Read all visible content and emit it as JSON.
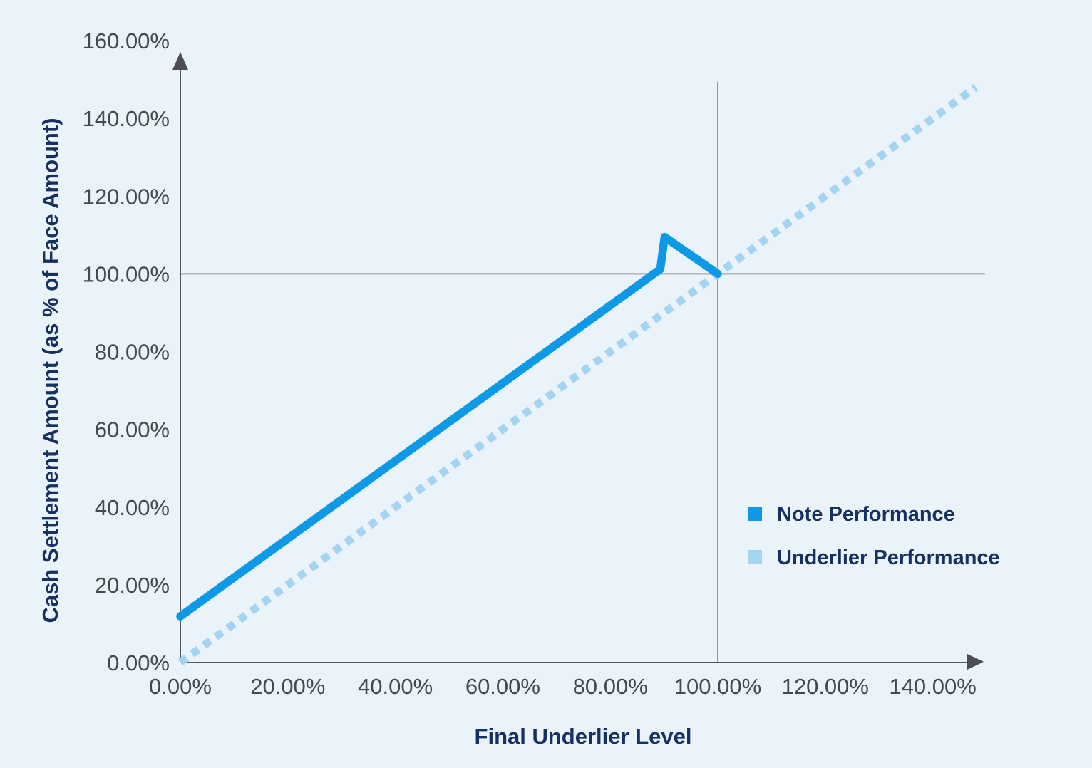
{
  "page": {
    "background_color": "#EAF3FA"
  },
  "chart_data": {
    "type": "line",
    "title": "",
    "xlabel": "Final Underlier Level",
    "ylabel": "Cash Settlement Amount (as % of Face Amount)",
    "xlim": [
      0,
      149
    ],
    "ylim": [
      0,
      160
    ],
    "grid": false,
    "x_ticks": [
      {
        "label": "0.00%",
        "value": 0
      },
      {
        "label": "20.00%",
        "value": 20
      },
      {
        "label": "40.00%",
        "value": 40
      },
      {
        "label": "60.00%",
        "value": 60
      },
      {
        "label": "80.00%",
        "value": 80
      },
      {
        "label": "100.00%",
        "value": 100
      },
      {
        "label": "120.00%",
        "value": 120
      },
      {
        "label": "140.00%",
        "value": 140
      }
    ],
    "y_ticks": [
      {
        "label": "0.00%",
        "value": 0
      },
      {
        "label": "20.00%",
        "value": 20
      },
      {
        "label": "40.00%",
        "value": 40
      },
      {
        "label": "60.00%",
        "value": 60
      },
      {
        "label": "80.00%",
        "value": 80
      },
      {
        "label": "100.00%",
        "value": 100
      },
      {
        "label": "120.00%",
        "value": 120
      },
      {
        "label": "140.00%",
        "value": 140
      },
      {
        "label": "160.00%",
        "value": 160
      }
    ],
    "reference_lines": {
      "horizontal_y": 100,
      "vertical_x": 100
    },
    "series": [
      {
        "name": "Note Performance",
        "style": "solid",
        "color": "#0E99E6",
        "points": [
          [
            0,
            11.9
          ],
          [
            89.3,
            101.2
          ],
          [
            90.1,
            109.5
          ],
          [
            100,
            100
          ]
        ]
      },
      {
        "name": "Underlier Performance",
        "style": "dotted",
        "color": "#A4D4F2",
        "points": [
          [
            0,
            0
          ],
          [
            148,
            148
          ]
        ]
      }
    ],
    "legend": {
      "position": "right-middle"
    },
    "colors": {
      "note_line": "#0E99E6",
      "underlier_line": "#A4D4F2",
      "navy_text": "#163060",
      "tick_text": "#46484D",
      "axis": "#55565A",
      "reference_line": "#97999B",
      "background": "#EAF3FA"
    }
  }
}
